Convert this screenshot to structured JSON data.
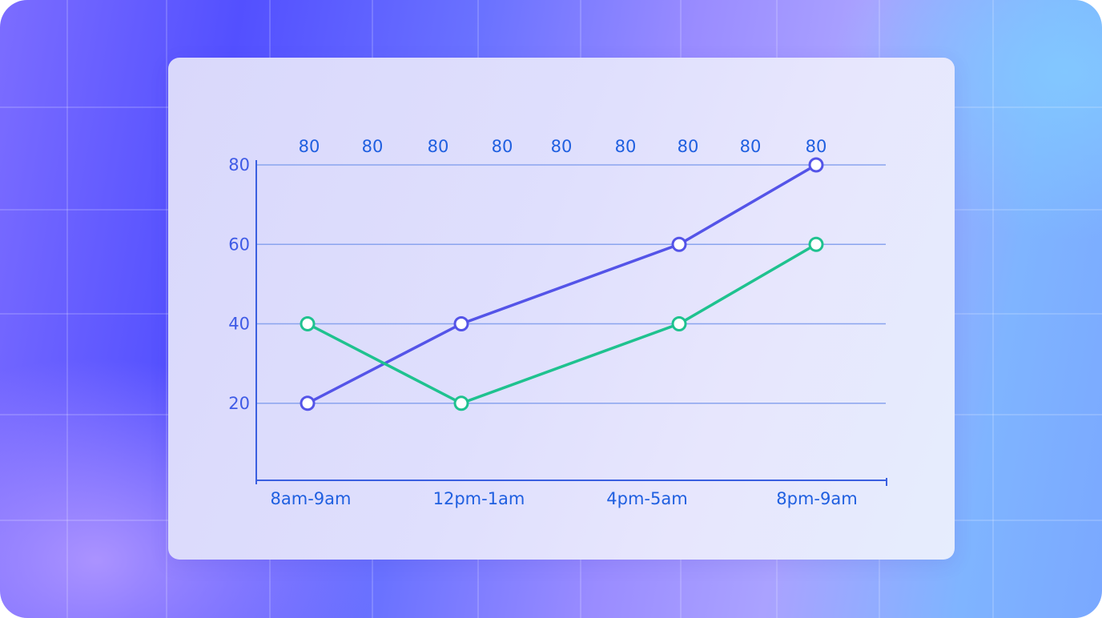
{
  "colors": {
    "series_a": "#5454e8",
    "series_b": "#1fc28f",
    "axis": "#3a5fe0",
    "gridline": "#8aa4ee",
    "tick_text": "#3f5be6",
    "point_fill": "#ffffff"
  },
  "chart_data": {
    "type": "line",
    "title": "",
    "xlabel": "",
    "ylabel": "",
    "ylim": [
      0,
      80
    ],
    "y_ticks": [
      "20",
      "40",
      "60",
      "80"
    ],
    "grid": "horizontal",
    "legend": "none",
    "categories": [
      "8am-9am",
      "12pm-1am",
      "4pm-5am",
      "8pm-9am"
    ],
    "top_labels": [
      "80",
      "80",
      "80",
      "80",
      "80",
      "80",
      "80",
      "80",
      "80"
    ],
    "series": [
      {
        "values": [
          20,
          40,
          60,
          80
        ]
      },
      {
        "values": [
          40,
          20,
          40,
          60
        ]
      }
    ]
  }
}
